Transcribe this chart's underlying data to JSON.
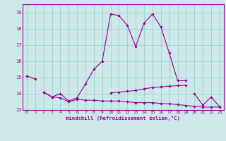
{
  "xlabel": "Windchill (Refroidissement éolien,°C)",
  "background_color": "#cce8e8",
  "line_color": "#990099",
  "grid_color": "#99cccc",
  "xlim": [
    -0.5,
    23.5
  ],
  "ylim": [
    13.0,
    19.5
  ],
  "xticks": [
    0,
    1,
    2,
    3,
    4,
    5,
    6,
    7,
    8,
    9,
    10,
    11,
    12,
    13,
    14,
    15,
    16,
    17,
    18,
    19,
    20,
    21,
    22,
    23
  ],
  "yticks": [
    13,
    14,
    15,
    16,
    17,
    18,
    19
  ],
  "series": [
    {
      "x": [
        0,
        1
      ],
      "y": [
        15.1,
        14.9
      ]
    },
    {
      "x": [
        2,
        3,
        4,
        5,
        6,
        7,
        8,
        9,
        10,
        11,
        12,
        13,
        14,
        15,
        16,
        17,
        18,
        19
      ],
      "y": [
        14.1,
        13.8,
        14.0,
        13.55,
        13.75,
        14.6,
        15.5,
        16.0,
        18.9,
        18.8,
        18.2,
        16.9,
        18.35,
        18.9,
        18.1,
        16.5,
        14.8,
        14.8
      ]
    },
    {
      "x": [
        20,
        21,
        22,
        23
      ],
      "y": [
        14.0,
        13.3,
        13.8,
        13.2
      ]
    },
    {
      "x": [
        2,
        3,
        4,
        5,
        6,
        7,
        8,
        9,
        10,
        11,
        12,
        13,
        14,
        15,
        16,
        17,
        18,
        19,
        20,
        21,
        22,
        23
      ],
      "y": [
        14.1,
        13.8,
        13.75,
        13.5,
        13.65,
        13.6,
        13.6,
        13.55,
        13.55,
        13.55,
        13.5,
        13.45,
        13.45,
        13.45,
        13.4,
        13.38,
        13.33,
        13.28,
        13.22,
        13.18,
        13.18,
        13.18
      ]
    },
    {
      "x": [
        10,
        11,
        12,
        13,
        14,
        15,
        16,
        17,
        18,
        19
      ],
      "y": [
        14.05,
        14.1,
        14.15,
        14.2,
        14.3,
        14.38,
        14.42,
        14.46,
        14.5,
        14.52
      ]
    }
  ]
}
